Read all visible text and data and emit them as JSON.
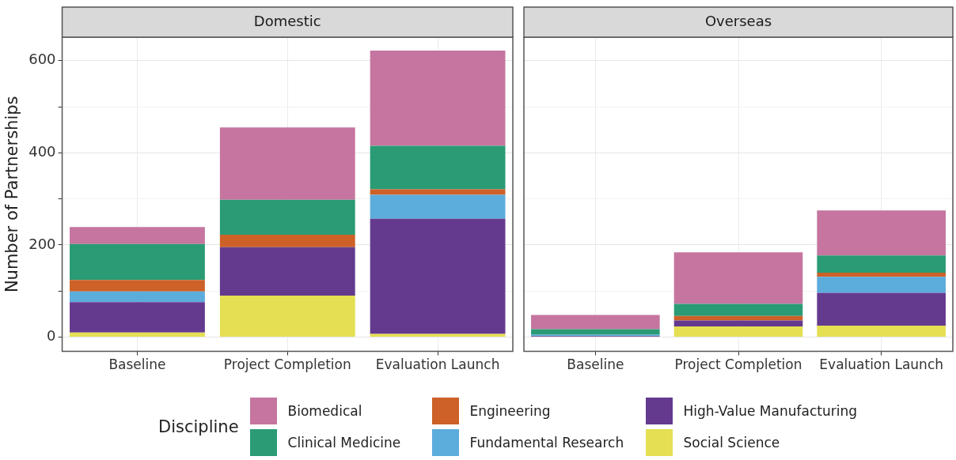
{
  "chart_data": [
    {
      "type": "bar",
      "title": "Domestic",
      "ylabel": "Number of Partnerships",
      "legend_title": "Discipline",
      "legend": "bottom",
      "stacked": true,
      "grid": true,
      "categories": [
        "Baseline",
        "Project Completion",
        "Evaluation Launch"
      ],
      "ylim": [
        -31,
        651
      ],
      "yticks": [
        0,
        {
          "value": 100,
          "label": null
        },
        200,
        {
          "value": 300,
          "label": null
        },
        400,
        {
          "value": 500,
          "label": null
        },
        600
      ],
      "series": [
        {
          "name": "Social Science",
          "color": "#e5df53",
          "values": [
            10,
            90,
            7
          ]
        },
        {
          "name": "High-Value Manufacturing",
          "color": "#643a8f",
          "values": [
            66,
            105,
            250
          ]
        },
        {
          "name": "Fundamental Research",
          "color": "#5cacdc",
          "values": [
            23,
            0,
            52
          ]
        },
        {
          "name": "Engineering",
          "color": "#cd6127",
          "values": [
            25,
            27,
            12
          ]
        },
        {
          "name": "Clinical Medicine",
          "color": "#2a9b74",
          "values": [
            78,
            76,
            94
          ]
        },
        {
          "name": "Biomedical",
          "color": "#c5759f",
          "values": [
            37,
            157,
            207
          ]
        }
      ]
    },
    {
      "type": "bar",
      "title": "Overseas",
      "stacked": true,
      "grid": true,
      "tick_labels": "x",
      "categories": [
        "Baseline",
        "Project Completion",
        "Evaluation Launch"
      ],
      "ylim": [
        -31,
        651
      ],
      "yticks": [
        0,
        {
          "value": 100,
          "label": null
        },
        200,
        {
          "value": 300,
          "label": null
        },
        400,
        {
          "value": 500,
          "label": null
        },
        600
      ],
      "series": [
        {
          "color": "#e5df53",
          "values": [
            0,
            23,
            25
          ]
        },
        {
          "color": "#643a8f",
          "values": [
            2,
            13,
            71
          ]
        },
        {
          "color": "#5cacdc",
          "values": [
            3,
            0,
            35
          ]
        },
        {
          "color": "#cd6127",
          "values": [
            0,
            10,
            9
          ]
        },
        {
          "color": "#2a9b74",
          "values": [
            12,
            26,
            37
          ]
        },
        {
          "color": "#c5759f",
          "values": [
            31,
            112,
            98
          ]
        }
      ]
    }
  ]
}
